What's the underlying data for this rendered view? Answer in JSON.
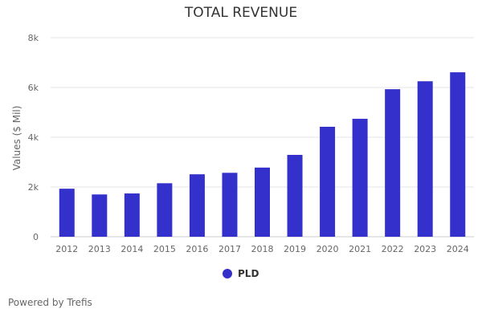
{
  "chart_data": {
    "type": "bar",
    "title": "TOTAL REVENUE",
    "ylabel": "Values ($ Mil)",
    "xlabel": "",
    "categories": [
      "2012",
      "2013",
      "2014",
      "2015",
      "2016",
      "2017",
      "2018",
      "2019",
      "2020",
      "2021",
      "2022",
      "2023",
      "2024"
    ],
    "series": [
      {
        "name": "PLD",
        "values": [
          1930,
          1700,
          1740,
          2150,
          2510,
          2570,
          2780,
          3290,
          4420,
          4740,
          5930,
          6250,
          6610
        ],
        "color": "#3430cc"
      }
    ],
    "ylim": [
      0,
      8000
    ],
    "yticks": [
      0,
      2000,
      4000,
      6000,
      8000
    ],
    "ytick_labels": [
      "0",
      "2k",
      "4k",
      "6k",
      "8k"
    ],
    "grid": true,
    "legend_position": "bottom"
  },
  "footer": {
    "credit": "Powered by Trefis"
  }
}
